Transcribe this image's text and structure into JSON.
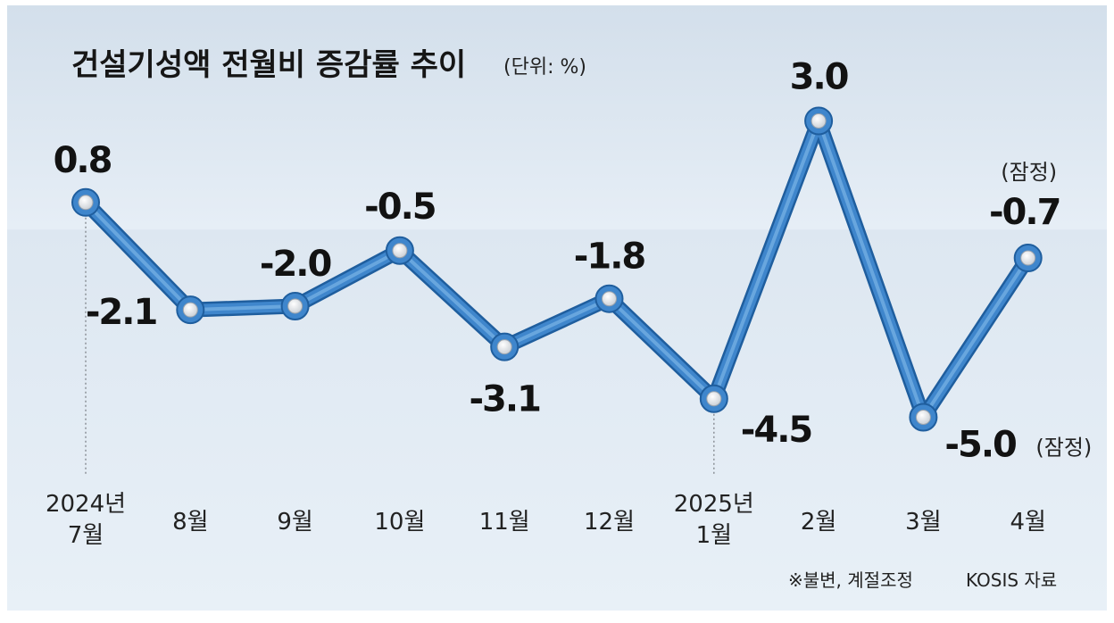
{
  "chart_data": {
    "type": "line",
    "title": "건설기성액 전월비 증감률 추이",
    "unit": "(단위: %)",
    "x_labels": [
      [
        "2024년",
        "7월"
      ],
      [
        "8월"
      ],
      [
        "9월"
      ],
      [
        "10월"
      ],
      [
        "11월"
      ],
      [
        "12월"
      ],
      [
        "2025년",
        "1월"
      ],
      [
        "2월"
      ],
      [
        "3월"
      ],
      [
        "4월"
      ]
    ],
    "values": [
      0.8,
      -2.1,
      -2.0,
      -0.5,
      -3.1,
      -1.8,
      -4.5,
      3.0,
      -5.0,
      -0.7
    ],
    "value_labels": [
      "0.8",
      "-2.1",
      "-2.0",
      "-0.5",
      "-3.1",
      "-1.8",
      "-4.5",
      "3.0",
      "-5.0",
      "-0.7"
    ],
    "provisional_label": "(잠정)",
    "provisional_indices": [
      8,
      9
    ],
    "grid": false,
    "legend": "none"
  },
  "footnotes": {
    "adjustment": "※불변, 계절조정",
    "source": "KOSIS 자료"
  },
  "colors": {
    "line": "#3f86cc",
    "line_dark": "#1f5e9e",
    "line_light": "#7bb4e6",
    "marker_fill": "#e6e9ed",
    "background_top": "#d6e2ee",
    "background_bottom": "#e7eff7"
  }
}
